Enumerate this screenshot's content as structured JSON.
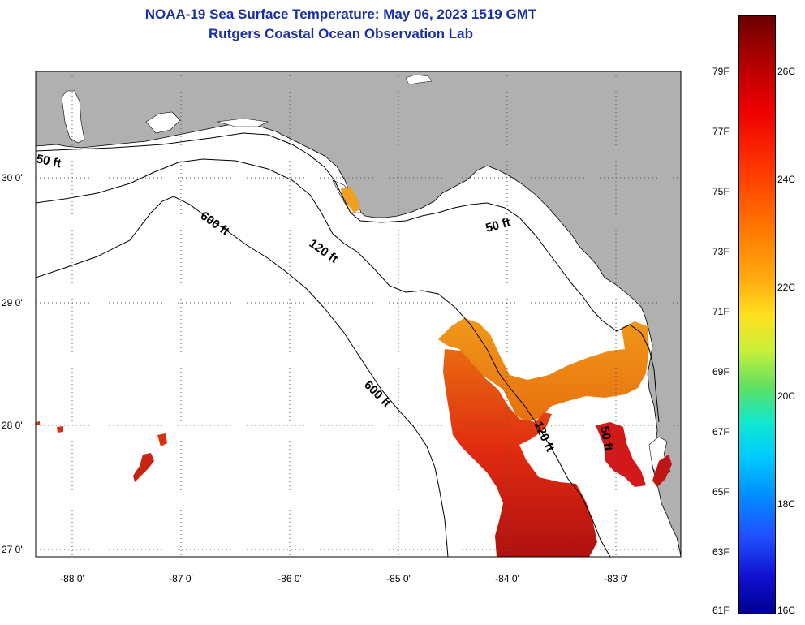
{
  "header": {
    "title": "NOAA-19 Sea Surface Temperature:  May 06, 2023 1519 GMT",
    "subtitle": "Rutgers Coastal Ocean Observation Lab"
  },
  "map": {
    "lat_labels": [
      "30 0'",
      "29 0'",
      "28 0'",
      "27 0'"
    ],
    "lon_labels": [
      "-88 0'",
      "-87 0'",
      "-86 0'",
      "-85 0'",
      "-84 0'",
      "-83 0'"
    ],
    "contour_labels": [
      "50 ft",
      "600 ft",
      "120 ft",
      "50 ft",
      "600 ft",
      "120 ft",
      "50 ft"
    ],
    "land_color": "#b0b0b0",
    "water_color": "#ffffff"
  },
  "colorbar": {
    "fahrenheit": [
      "79F",
      "77F",
      "75F",
      "73F",
      "71F",
      "69F",
      "67F",
      "65F",
      "63F",
      "61F"
    ],
    "celsius": [
      "26C",
      "24C",
      "22C",
      "20C",
      "18C",
      "16C"
    ]
  }
}
